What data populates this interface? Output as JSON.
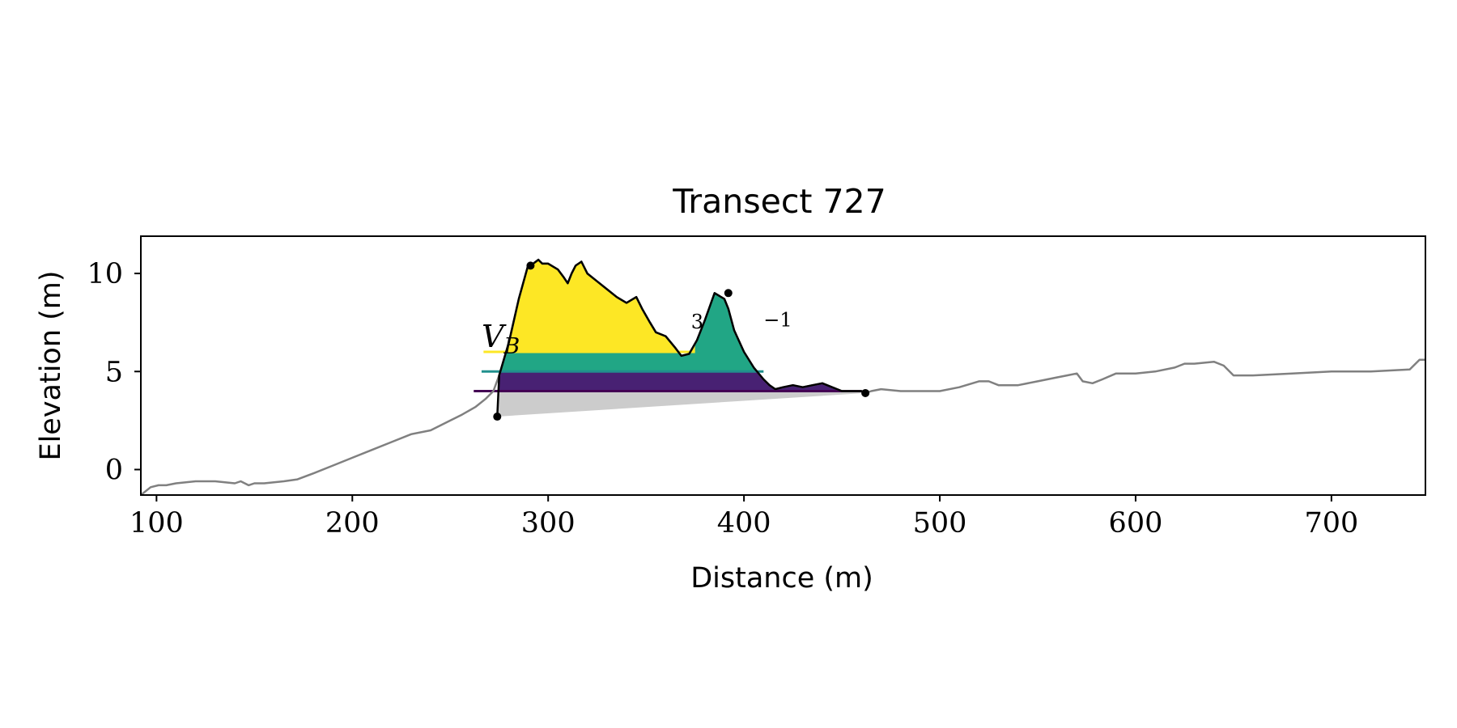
{
  "chart_data": {
    "type": "area",
    "title": "Transect 727",
    "xlabel": "Distance (m)",
    "ylabel": "Elevation (m)",
    "xlim": [
      92,
      748
    ],
    "ylim": [
      -1.3,
      11.9
    ],
    "xticks": [
      100,
      200,
      300,
      400,
      500,
      600,
      700
    ],
    "xtick_labels": [
      "100",
      "200",
      "300",
      "400",
      "500",
      "600",
      "700"
    ],
    "yticks": [
      0,
      5,
      10
    ],
    "ytick_labels": [
      "0",
      "5",
      "10"
    ],
    "grid": false,
    "legend": "none",
    "colors": {
      "profile": "#808080",
      "dune_outline": "#000000",
      "base_wedge": "#cccccc",
      "yellow": "#fde725",
      "teal": "#21a685",
      "purple": "#482173",
      "teal_line": "#21908d",
      "purple_line": "#440154"
    },
    "profile": {
      "x": [
        92,
        97,
        101,
        105,
        110,
        120,
        130,
        140,
        143,
        147,
        150,
        155,
        165,
        172,
        180,
        190,
        200,
        210,
        220,
        230,
        240,
        250,
        256,
        263,
        268,
        272,
        275,
        280,
        285,
        290,
        291,
        295,
        297,
        300,
        305,
        308,
        310,
        312,
        314,
        317,
        320,
        325,
        330,
        335,
        340,
        345,
        348,
        352,
        355,
        360,
        365,
        368,
        372,
        376,
        380,
        385,
        390,
        392,
        395,
        400,
        405,
        410,
        413,
        416,
        420,
        425,
        430,
        435,
        440,
        445,
        450,
        455,
        460,
        462,
        465,
        470,
        480,
        490,
        500,
        510,
        520,
        525,
        530,
        540,
        550,
        560,
        565,
        570,
        573,
        578,
        583,
        590,
        600,
        610,
        620,
        625,
        630,
        640,
        645,
        650,
        660,
        680,
        700,
        720,
        740,
        745,
        748
      ],
      "y": [
        -1.3,
        -0.9,
        -0.8,
        -0.8,
        -0.7,
        -0.6,
        -0.6,
        -0.7,
        -0.6,
        -0.8,
        -0.7,
        -0.7,
        -0.6,
        -0.5,
        -0.2,
        0.2,
        0.6,
        1.0,
        1.4,
        1.8,
        2.0,
        2.5,
        2.8,
        3.2,
        3.6,
        4.0,
        4.8,
        6.5,
        8.7,
        10.5,
        10.4,
        10.7,
        10.5,
        10.5,
        10.2,
        9.8,
        9.5,
        10.0,
        10.4,
        10.6,
        10.0,
        9.6,
        9.2,
        8.8,
        8.5,
        8.8,
        8.2,
        7.5,
        7.0,
        6.8,
        6.2,
        5.8,
        5.9,
        6.6,
        7.6,
        9.0,
        8.7,
        8.2,
        7.1,
        6.0,
        5.2,
        4.6,
        4.3,
        4.1,
        4.2,
        4.3,
        4.2,
        4.3,
        4.4,
        4.2,
        4.0,
        4.0,
        4.0,
        3.9,
        4.0,
        4.1,
        4.0,
        4.0,
        4.0,
        4.2,
        4.5,
        4.5,
        4.3,
        4.3,
        4.5,
        4.7,
        4.8,
        4.9,
        4.5,
        4.4,
        4.6,
        4.9,
        4.9,
        5.0,
        5.2,
        5.4,
        5.4,
        5.5,
        5.3,
        4.8,
        4.8,
        4.9,
        5.0,
        5.0,
        5.1,
        5.6,
        5.6
      ]
    },
    "dune": {
      "toe": {
        "x": 274,
        "y": 2.7
      },
      "crest": {
        "x": 291,
        "y": 10.4
      },
      "peak": {
        "x": 392,
        "y": 9.0
      },
      "heel": {
        "x": 462,
        "y": 3.9
      }
    },
    "water_levels": [
      {
        "color": "yellow",
        "elevation": 6.0,
        "line_x": [
          267,
          375
        ]
      },
      {
        "color": "teal",
        "elevation": 5.0,
        "line_x": [
          266,
          410
        ]
      },
      {
        "color": "purple",
        "elevation": 4.0,
        "line_x": [
          262,
          460
        ]
      }
    ],
    "annotations": {
      "vb_main": "V",
      "vb_sub": "B",
      "label_3": "3",
      "label_minus1": "−1",
      "label_3_pos": {
        "x": 373,
        "y": 7.2
      },
      "label_minus1_pos": {
        "x": 410,
        "y": 7.3
      },
      "vb_pos": {
        "x": 266,
        "y": 6.2
      }
    }
  }
}
